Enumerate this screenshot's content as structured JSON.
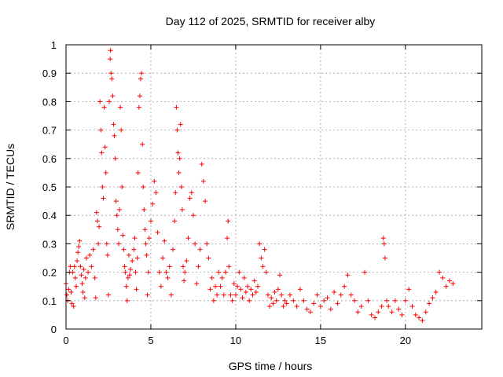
{
  "chart_data": {
    "type": "scatter",
    "title": "Day 112 of 2025, SRMTID for receiver alby",
    "xlabel": "GPS time / hours",
    "ylabel": "SRMTID / TECUs",
    "xlim": [
      0,
      24.5
    ],
    "ylim": [
      0,
      1
    ],
    "xticks": [
      0,
      5,
      10,
      15,
      20
    ],
    "xtick_labels": [
      "0",
      "5",
      "10",
      "15",
      "20"
    ],
    "yticks": [
      0,
      0.1,
      0.2,
      0.3,
      0.4,
      0.5,
      0.6,
      0.7,
      0.8,
      0.9,
      1
    ],
    "ytick_labels": [
      "0",
      "0.1",
      "0.2",
      "0.3",
      "0.4",
      "0.5",
      "0.6",
      "0.7",
      "0.8",
      "0.9",
      "1"
    ],
    "grid": true,
    "marker": "+",
    "color": "#ff0000",
    "series": [
      {
        "name": "SRMTID",
        "points": [
          [
            0.0,
            0.16
          ],
          [
            0.05,
            0.12
          ],
          [
            0.1,
            0.1
          ],
          [
            0.15,
            0.14
          ],
          [
            0.2,
            0.2
          ],
          [
            0.25,
            0.22
          ],
          [
            0.3,
            0.13
          ],
          [
            0.35,
            0.09
          ],
          [
            0.4,
            0.2
          ],
          [
            0.45,
            0.08
          ],
          [
            0.5,
            0.22
          ],
          [
            0.55,
            0.18
          ],
          [
            0.6,
            0.15
          ],
          [
            0.65,
            0.24
          ],
          [
            0.7,
            0.27
          ],
          [
            0.75,
            0.29
          ],
          [
            0.8,
            0.31
          ],
          [
            0.85,
            0.22
          ],
          [
            0.9,
            0.19
          ],
          [
            0.95,
            0.16
          ],
          [
            1.0,
            0.13
          ],
          [
            1.05,
            0.21
          ],
          [
            1.1,
            0.11
          ],
          [
            1.15,
            0.18
          ],
          [
            1.2,
            0.25
          ],
          [
            1.3,
            0.2
          ],
          [
            1.4,
            0.26
          ],
          [
            1.5,
            0.22
          ],
          [
            1.6,
            0.28
          ],
          [
            1.7,
            0.18
          ],
          [
            1.75,
            0.11
          ],
          [
            1.8,
            0.41
          ],
          [
            1.85,
            0.38
          ],
          [
            1.9,
            0.3
          ],
          [
            1.95,
            0.36
          ],
          [
            2.0,
            0.8
          ],
          [
            2.05,
            0.7
          ],
          [
            2.1,
            0.62
          ],
          [
            2.15,
            0.5
          ],
          [
            2.2,
            0.46
          ],
          [
            2.25,
            0.78
          ],
          [
            2.3,
            0.64
          ],
          [
            2.35,
            0.55
          ],
          [
            2.4,
            0.3
          ],
          [
            2.45,
            0.26
          ],
          [
            2.5,
            0.12
          ],
          [
            2.55,
            0.8
          ],
          [
            2.6,
            0.95
          ],
          [
            2.62,
            0.98
          ],
          [
            2.65,
            0.9
          ],
          [
            2.7,
            0.88
          ],
          [
            2.75,
            0.82
          ],
          [
            2.8,
            0.72
          ],
          [
            2.85,
            0.68
          ],
          [
            2.9,
            0.6
          ],
          [
            2.95,
            0.45
          ],
          [
            3.0,
            0.4
          ],
          [
            3.05,
            0.35
          ],
          [
            3.1,
            0.3
          ],
          [
            3.15,
            0.42
          ],
          [
            3.2,
            0.78
          ],
          [
            3.25,
            0.7
          ],
          [
            3.3,
            0.5
          ],
          [
            3.35,
            0.33
          ],
          [
            3.4,
            0.28
          ],
          [
            3.45,
            0.22
          ],
          [
            3.5,
            0.2
          ],
          [
            3.55,
            0.15
          ],
          [
            3.6,
            0.1
          ],
          [
            3.65,
            0.18
          ],
          [
            3.7,
            0.26
          ],
          [
            3.75,
            0.19
          ],
          [
            3.8,
            0.21
          ],
          [
            3.9,
            0.24
          ],
          [
            4.0,
            0.28
          ],
          [
            4.05,
            0.32
          ],
          [
            4.1,
            0.2
          ],
          [
            4.15,
            0.14
          ],
          [
            4.2,
            0.25
          ],
          [
            4.25,
            0.55
          ],
          [
            4.3,
            0.78
          ],
          [
            4.35,
            0.82
          ],
          [
            4.4,
            0.88
          ],
          [
            4.45,
            0.9
          ],
          [
            4.5,
            0.65
          ],
          [
            4.55,
            0.5
          ],
          [
            4.6,
            0.42
          ],
          [
            4.65,
            0.35
          ],
          [
            4.7,
            0.3
          ],
          [
            4.75,
            0.26
          ],
          [
            4.8,
            0.12
          ],
          [
            4.85,
            0.2
          ],
          [
            4.9,
            0.32
          ],
          [
            5.0,
            0.38
          ],
          [
            5.1,
            0.44
          ],
          [
            5.2,
            0.52
          ],
          [
            5.3,
            0.48
          ],
          [
            5.4,
            0.34
          ],
          [
            5.5,
            0.2
          ],
          [
            5.6,
            0.15
          ],
          [
            5.7,
            0.25
          ],
          [
            5.8,
            0.31
          ],
          [
            5.9,
            0.2
          ],
          [
            6.0,
            0.18
          ],
          [
            6.1,
            0.22
          ],
          [
            6.2,
            0.12
          ],
          [
            6.3,
            0.28
          ],
          [
            6.4,
            0.38
          ],
          [
            6.45,
            0.48
          ],
          [
            6.5,
            0.78
          ],
          [
            6.55,
            0.7
          ],
          [
            6.6,
            0.62
          ],
          [
            6.65,
            0.55
          ],
          [
            6.7,
            0.6
          ],
          [
            6.75,
            0.72
          ],
          [
            6.8,
            0.5
          ],
          [
            6.85,
            0.42
          ],
          [
            6.9,
            0.22
          ],
          [
            6.95,
            0.17
          ],
          [
            7.0,
            0.2
          ],
          [
            7.1,
            0.24
          ],
          [
            7.2,
            0.32
          ],
          [
            7.3,
            0.46
          ],
          [
            7.4,
            0.48
          ],
          [
            7.5,
            0.4
          ],
          [
            7.6,
            0.3
          ],
          [
            7.7,
            0.16
          ],
          [
            7.8,
            0.22
          ],
          [
            7.9,
            0.28
          ],
          [
            8.0,
            0.58
          ],
          [
            8.1,
            0.52
          ],
          [
            8.2,
            0.45
          ],
          [
            8.3,
            0.3
          ],
          [
            8.4,
            0.25
          ],
          [
            8.5,
            0.14
          ],
          [
            8.6,
            0.18
          ],
          [
            8.7,
            0.1
          ],
          [
            8.8,
            0.15
          ],
          [
            8.9,
            0.12
          ],
          [
            9.0,
            0.2
          ],
          [
            9.1,
            0.15
          ],
          [
            9.2,
            0.18
          ],
          [
            9.3,
            0.12
          ],
          [
            9.4,
            0.2
          ],
          [
            9.5,
            0.32
          ],
          [
            9.55,
            0.38
          ],
          [
            9.6,
            0.22
          ],
          [
            9.7,
            0.12
          ],
          [
            9.8,
            0.1
          ],
          [
            9.9,
            0.16
          ],
          [
            10.0,
            0.12
          ],
          [
            10.1,
            0.15
          ],
          [
            10.2,
            0.2
          ],
          [
            10.3,
            0.14
          ],
          [
            10.4,
            0.11
          ],
          [
            10.5,
            0.18
          ],
          [
            10.6,
            0.13
          ],
          [
            10.7,
            0.15
          ],
          [
            10.8,
            0.1
          ],
          [
            10.9,
            0.14
          ],
          [
            11.0,
            0.12
          ],
          [
            11.1,
            0.17
          ],
          [
            11.2,
            0.13
          ],
          [
            11.3,
            0.15
          ],
          [
            11.4,
            0.3
          ],
          [
            11.5,
            0.25
          ],
          [
            11.6,
            0.22
          ],
          [
            11.7,
            0.28
          ],
          [
            11.8,
            0.2
          ],
          [
            11.9,
            0.12
          ],
          [
            12.0,
            0.08
          ],
          [
            12.1,
            0.11
          ],
          [
            12.2,
            0.09
          ],
          [
            12.3,
            0.13
          ],
          [
            12.4,
            0.1
          ],
          [
            12.5,
            0.14
          ],
          [
            12.6,
            0.19
          ],
          [
            12.7,
            0.12
          ],
          [
            12.8,
            0.08
          ],
          [
            12.9,
            0.1
          ],
          [
            13.0,
            0.09
          ],
          [
            13.2,
            0.12
          ],
          [
            13.4,
            0.1
          ],
          [
            13.6,
            0.08
          ],
          [
            13.8,
            0.14
          ],
          [
            14.0,
            0.1
          ],
          [
            14.2,
            0.07
          ],
          [
            14.4,
            0.06
          ],
          [
            14.6,
            0.09
          ],
          [
            14.8,
            0.12
          ],
          [
            15.0,
            0.08
          ],
          [
            15.2,
            0.1
          ],
          [
            15.4,
            0.11
          ],
          [
            15.6,
            0.07
          ],
          [
            15.8,
            0.13
          ],
          [
            16.0,
            0.09
          ],
          [
            16.2,
            0.12
          ],
          [
            16.4,
            0.15
          ],
          [
            16.6,
            0.19
          ],
          [
            16.8,
            0.12
          ],
          [
            17.0,
            0.1
          ],
          [
            17.2,
            0.06
          ],
          [
            17.4,
            0.08
          ],
          [
            17.6,
            0.2
          ],
          [
            17.8,
            0.1
          ],
          [
            18.0,
            0.05
          ],
          [
            18.2,
            0.04
          ],
          [
            18.4,
            0.06
          ],
          [
            18.6,
            0.08
          ],
          [
            18.7,
            0.32
          ],
          [
            18.75,
            0.3
          ],
          [
            18.8,
            0.25
          ],
          [
            18.9,
            0.1
          ],
          [
            19.0,
            0.08
          ],
          [
            19.2,
            0.06
          ],
          [
            19.4,
            0.1
          ],
          [
            19.6,
            0.07
          ],
          [
            19.8,
            0.05
          ],
          [
            20.0,
            0.1
          ],
          [
            20.2,
            0.14
          ],
          [
            20.4,
            0.08
          ],
          [
            20.6,
            0.05
          ],
          [
            20.8,
            0.04
          ],
          [
            21.0,
            0.03
          ],
          [
            21.2,
            0.06
          ],
          [
            21.4,
            0.09
          ],
          [
            21.6,
            0.11
          ],
          [
            21.8,
            0.13
          ],
          [
            22.0,
            0.2
          ],
          [
            22.2,
            0.18
          ],
          [
            22.4,
            0.15
          ],
          [
            22.6,
            0.17
          ],
          [
            22.8,
            0.16
          ]
        ]
      }
    ]
  }
}
